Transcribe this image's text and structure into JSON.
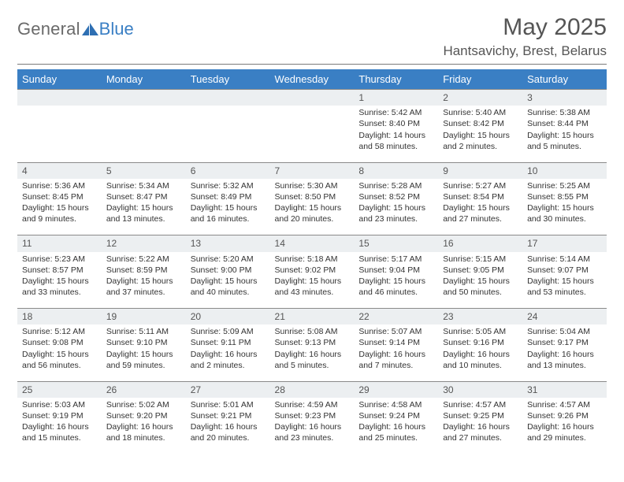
{
  "brand": {
    "general": "General",
    "blue": "Blue"
  },
  "title": "May 2025",
  "location": "Hantsavichy, Brest, Belarus",
  "colors": {
    "header_bg": "#3a7fc4",
    "header_fg": "#ffffff",
    "daynum_bg": "#eceff1",
    "rule": "#8a8a8a",
    "text": "#333333",
    "title_fg": "#555555"
  },
  "weekdays": [
    "Sunday",
    "Monday",
    "Tuesday",
    "Wednesday",
    "Thursday",
    "Friday",
    "Saturday"
  ],
  "weeks": [
    [
      null,
      null,
      null,
      null,
      {
        "n": "1",
        "sr": "5:42 AM",
        "ss": "8:40 PM",
        "dl": "14 hours and 58 minutes."
      },
      {
        "n": "2",
        "sr": "5:40 AM",
        "ss": "8:42 PM",
        "dl": "15 hours and 2 minutes."
      },
      {
        "n": "3",
        "sr": "5:38 AM",
        "ss": "8:44 PM",
        "dl": "15 hours and 5 minutes."
      }
    ],
    [
      {
        "n": "4",
        "sr": "5:36 AM",
        "ss": "8:45 PM",
        "dl": "15 hours and 9 minutes."
      },
      {
        "n": "5",
        "sr": "5:34 AM",
        "ss": "8:47 PM",
        "dl": "15 hours and 13 minutes."
      },
      {
        "n": "6",
        "sr": "5:32 AM",
        "ss": "8:49 PM",
        "dl": "15 hours and 16 minutes."
      },
      {
        "n": "7",
        "sr": "5:30 AM",
        "ss": "8:50 PM",
        "dl": "15 hours and 20 minutes."
      },
      {
        "n": "8",
        "sr": "5:28 AM",
        "ss": "8:52 PM",
        "dl": "15 hours and 23 minutes."
      },
      {
        "n": "9",
        "sr": "5:27 AM",
        "ss": "8:54 PM",
        "dl": "15 hours and 27 minutes."
      },
      {
        "n": "10",
        "sr": "5:25 AM",
        "ss": "8:55 PM",
        "dl": "15 hours and 30 minutes."
      }
    ],
    [
      {
        "n": "11",
        "sr": "5:23 AM",
        "ss": "8:57 PM",
        "dl": "15 hours and 33 minutes."
      },
      {
        "n": "12",
        "sr": "5:22 AM",
        "ss": "8:59 PM",
        "dl": "15 hours and 37 minutes."
      },
      {
        "n": "13",
        "sr": "5:20 AM",
        "ss": "9:00 PM",
        "dl": "15 hours and 40 minutes."
      },
      {
        "n": "14",
        "sr": "5:18 AM",
        "ss": "9:02 PM",
        "dl": "15 hours and 43 minutes."
      },
      {
        "n": "15",
        "sr": "5:17 AM",
        "ss": "9:04 PM",
        "dl": "15 hours and 46 minutes."
      },
      {
        "n": "16",
        "sr": "5:15 AM",
        "ss": "9:05 PM",
        "dl": "15 hours and 50 minutes."
      },
      {
        "n": "17",
        "sr": "5:14 AM",
        "ss": "9:07 PM",
        "dl": "15 hours and 53 minutes."
      }
    ],
    [
      {
        "n": "18",
        "sr": "5:12 AM",
        "ss": "9:08 PM",
        "dl": "15 hours and 56 minutes."
      },
      {
        "n": "19",
        "sr": "5:11 AM",
        "ss": "9:10 PM",
        "dl": "15 hours and 59 minutes."
      },
      {
        "n": "20",
        "sr": "5:09 AM",
        "ss": "9:11 PM",
        "dl": "16 hours and 2 minutes."
      },
      {
        "n": "21",
        "sr": "5:08 AM",
        "ss": "9:13 PM",
        "dl": "16 hours and 5 minutes."
      },
      {
        "n": "22",
        "sr": "5:07 AM",
        "ss": "9:14 PM",
        "dl": "16 hours and 7 minutes."
      },
      {
        "n": "23",
        "sr": "5:05 AM",
        "ss": "9:16 PM",
        "dl": "16 hours and 10 minutes."
      },
      {
        "n": "24",
        "sr": "5:04 AM",
        "ss": "9:17 PM",
        "dl": "16 hours and 13 minutes."
      }
    ],
    [
      {
        "n": "25",
        "sr": "5:03 AM",
        "ss": "9:19 PM",
        "dl": "16 hours and 15 minutes."
      },
      {
        "n": "26",
        "sr": "5:02 AM",
        "ss": "9:20 PM",
        "dl": "16 hours and 18 minutes."
      },
      {
        "n": "27",
        "sr": "5:01 AM",
        "ss": "9:21 PM",
        "dl": "16 hours and 20 minutes."
      },
      {
        "n": "28",
        "sr": "4:59 AM",
        "ss": "9:23 PM",
        "dl": "16 hours and 23 minutes."
      },
      {
        "n": "29",
        "sr": "4:58 AM",
        "ss": "9:24 PM",
        "dl": "16 hours and 25 minutes."
      },
      {
        "n": "30",
        "sr": "4:57 AM",
        "ss": "9:25 PM",
        "dl": "16 hours and 27 minutes."
      },
      {
        "n": "31",
        "sr": "4:57 AM",
        "ss": "9:26 PM",
        "dl": "16 hours and 29 minutes."
      }
    ]
  ],
  "labels": {
    "sunrise": "Sunrise: ",
    "sunset": "Sunset: ",
    "daylight": "Daylight: "
  }
}
